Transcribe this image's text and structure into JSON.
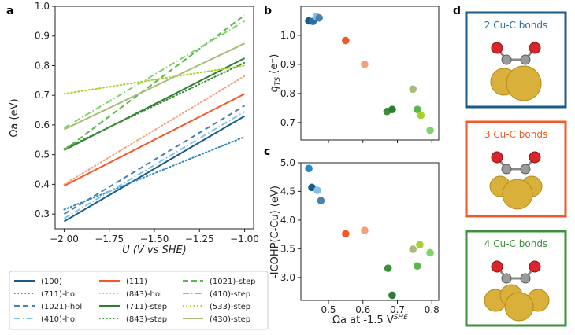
{
  "panel_labels": {
    "a": "a",
    "b": "b",
    "c": "c",
    "d": "d"
  },
  "colors": {
    "dark_blue": "#1c5a87",
    "mid_blue": "#4a7fb0",
    "light_blue": "#7fc3ea",
    "dotted_blue": "#2a88c4",
    "orange": "#f05a28",
    "light_orange": "#f4a07a",
    "dark_green": "#2e7d32",
    "mid_green": "#58b84a",
    "lime": "#8ccc3c",
    "olive": "#a9bb78",
    "bright_green": "#5cc85c"
  },
  "chart_data": [
    {
      "id": "a",
      "type": "line",
      "xlabel": "U (V vs SHE)",
      "ylabel": "Ωa (eV)",
      "xlim": [
        -2.05,
        -0.95
      ],
      "ylim": [
        0.25,
        1.0
      ],
      "xticks": [
        -2.0,
        -1.75,
        -1.5,
        -1.25,
        -1.0
      ],
      "xtick_labels": [
        "−2.00",
        "−1.75",
        "−1.50",
        "−1.25",
        "−1.00"
      ],
      "yticks": [
        0.3,
        0.4,
        0.5,
        0.6,
        0.7,
        0.8,
        0.9,
        1.0
      ],
      "ytick_labels": [
        "0.3",
        "0.4",
        "0.5",
        "0.6",
        "0.7",
        "0.8",
        "0.9",
        "1.0"
      ],
      "series": [
        {
          "name": "(100)",
          "color": "#1c5a87",
          "dash": "solid",
          "x": [
            -2.0,
            -1.0
          ],
          "y": [
            0.275,
            0.63
          ]
        },
        {
          "name": "(711)-hol",
          "color": "#2a88c4",
          "dash": "dotted",
          "x": [
            -2.0,
            -1.0
          ],
          "y": [
            0.315,
            0.56
          ]
        },
        {
          "name": "(1021)-hol",
          "color": "#4a7fb0",
          "dash": "dashed",
          "x": [
            -2.0,
            -1.0
          ],
          "y": [
            0.3,
            0.665
          ]
        },
        {
          "name": "(410)-hol",
          "color": "#7fc3ea",
          "dash": "dashdot",
          "x": [
            -2.0,
            -1.0
          ],
          "y": [
            0.285,
            0.645
          ]
        },
        {
          "name": "(111)",
          "color": "#f05a28",
          "dash": "solid",
          "x": [
            -2.0,
            -1.0
          ],
          "y": [
            0.395,
            0.705
          ]
        },
        {
          "name": "(843)-hol",
          "color": "#f4a07a",
          "dash": "dotted",
          "x": [
            -2.0,
            -1.0
          ],
          "y": [
            0.4,
            0.765
          ]
        },
        {
          "name": "(711)-step",
          "color": "#2e7d32",
          "dash": "solid",
          "x": [
            -2.0,
            -1.0
          ],
          "y": [
            0.515,
            0.825
          ]
        },
        {
          "name": "(843)-step",
          "color": "#3f8f3a",
          "dash": "dotted",
          "x": [
            -2.0,
            -1.0
          ],
          "y": [
            0.52,
            0.81
          ]
        },
        {
          "name": "(1021)-step",
          "color": "#58b84a",
          "dash": "dashed",
          "x": [
            -2.0,
            -1.0
          ],
          "y": [
            0.515,
            0.97
          ]
        },
        {
          "name": "(410)-step",
          "color": "#7ed36a",
          "dash": "dashdot",
          "x": [
            -2.0,
            -1.0
          ],
          "y": [
            0.59,
            0.95
          ]
        },
        {
          "name": "(533)-step",
          "color": "#a6d22e",
          "dash": "dotted",
          "x": [
            -2.0,
            -1.0
          ],
          "y": [
            0.705,
            0.8
          ]
        },
        {
          "name": "(430)-step",
          "color": "#a9bb78",
          "dash": "solid",
          "x": [
            -2.0,
            -1.0
          ],
          "y": [
            0.585,
            0.875
          ]
        }
      ]
    },
    {
      "id": "b",
      "type": "scatter",
      "xlabel": "",
      "ylabel": "qTS (e⁻)",
      "ylabel_main": "q",
      "ylabel_sub": "TS",
      "ylabel_rest": " (e⁻)",
      "xlim": [
        0.42,
        0.82
      ],
      "ylim": [
        0.64,
        1.1
      ],
      "xticks": [
        0.5,
        0.6,
        0.7,
        0.8
      ],
      "yticks": [
        0.7,
        0.8,
        0.9,
        1.0
      ],
      "ytick_labels": [
        "0.7",
        "0.8",
        "0.9",
        "1.0"
      ],
      "points": [
        {
          "x": 0.443,
          "y": 1.05,
          "color": "#1c5a87"
        },
        {
          "x": 0.455,
          "y": 1.048,
          "color": "#2a6fa8"
        },
        {
          "x": 0.465,
          "y": 1.065,
          "color": "#7fc3ea"
        },
        {
          "x": 0.473,
          "y": 1.06,
          "color": "#4a7fb0"
        },
        {
          "x": 0.55,
          "y": 0.982,
          "color": "#f05a28"
        },
        {
          "x": 0.605,
          "y": 0.9,
          "color": "#f4a07a"
        },
        {
          "x": 0.67,
          "y": 0.738,
          "color": "#3f8f3a"
        },
        {
          "x": 0.685,
          "y": 0.745,
          "color": "#2e7d32"
        },
        {
          "x": 0.745,
          "y": 0.815,
          "color": "#a9bb78"
        },
        {
          "x": 0.758,
          "y": 0.745,
          "color": "#58b84a"
        },
        {
          "x": 0.768,
          "y": 0.725,
          "color": "#a6d22e"
        },
        {
          "x": 0.795,
          "y": 0.673,
          "color": "#7ed36a"
        }
      ]
    },
    {
      "id": "c",
      "type": "scatter",
      "xlabel": "Ωa at -1.5 VSHE",
      "xlabel_main": "Ωa at -1.5 V",
      "xlabel_sup": "SHE",
      "ylabel": "-ICOHP(C-Cu) (eV)",
      "xlim": [
        0.42,
        0.82
      ],
      "ylim": [
        2.6,
        5.0
      ],
      "xticks": [
        0.5,
        0.6,
        0.7,
        0.8
      ],
      "xtick_labels": [
        "0.5",
        "0.6",
        "0.7",
        "0.8"
      ],
      "yticks": [
        3.0,
        3.5,
        4.0,
        4.5,
        5.0
      ],
      "ytick_labels": [
        "3.0",
        "3.5",
        "4.0",
        "4.5",
        "5.0"
      ],
      "points": [
        {
          "x": 0.443,
          "y": 4.9,
          "color": "#2a88c4"
        },
        {
          "x": 0.452,
          "y": 4.57,
          "color": "#1c5a87"
        },
        {
          "x": 0.468,
          "y": 4.52,
          "color": "#7fc3ea"
        },
        {
          "x": 0.478,
          "y": 4.34,
          "color": "#4a7fb0"
        },
        {
          "x": 0.55,
          "y": 3.76,
          "color": "#f05a28"
        },
        {
          "x": 0.605,
          "y": 3.82,
          "color": "#f4a07a"
        },
        {
          "x": 0.673,
          "y": 3.16,
          "color": "#3f8f3a"
        },
        {
          "x": 0.685,
          "y": 2.69,
          "color": "#2e7d32"
        },
        {
          "x": 0.745,
          "y": 3.49,
          "color": "#a9bb78"
        },
        {
          "x": 0.758,
          "y": 3.2,
          "color": "#58b84a"
        },
        {
          "x": 0.765,
          "y": 3.57,
          "color": "#a6d22e"
        },
        {
          "x": 0.795,
          "y": 3.43,
          "color": "#7ed36a"
        }
      ]
    }
  ],
  "legend": [
    {
      "label": "(100)",
      "color": "#1c5a87",
      "dash": "solid"
    },
    {
      "label": "(111)",
      "color": "#f05a28",
      "dash": "solid"
    },
    {
      "label": "(1021)-step",
      "color": "#58b84a",
      "dash": "dashed"
    },
    {
      "label": "(711)-hol",
      "color": "#2a88c4",
      "dash": "dotted"
    },
    {
      "label": "(843)-hol",
      "color": "#f4a07a",
      "dash": "dotted"
    },
    {
      "label": "(410)-step",
      "color": "#7ed36a",
      "dash": "dashdot"
    },
    {
      "label": "(1021)-hol",
      "color": "#4a7fb0",
      "dash": "dashed"
    },
    {
      "label": "(711)-step",
      "color": "#2e7d32",
      "dash": "solid"
    },
    {
      "label": "(533)-step",
      "color": "#a6d22e",
      "dash": "dotted"
    },
    {
      "label": "(410)-hol",
      "color": "#7fc3ea",
      "dash": "dashdot"
    },
    {
      "label": "(843)-step",
      "color": "#3f8f3a",
      "dash": "dotted"
    },
    {
      "label": "(430)-step",
      "color": "#a9bb78",
      "dash": "solid"
    }
  ],
  "structures": [
    {
      "title": "2 Cu-C bonds",
      "border": "#1c5a87",
      "title_color": "#2a6fa8",
      "bonds": 2
    },
    {
      "title": "3 Cu-C bonds",
      "border": "#f05a28",
      "title_color": "#f05a28",
      "bonds": 3
    },
    {
      "title": "4 Cu-C bonds",
      "border": "#3f8f3a",
      "title_color": "#3f8f3a",
      "bonds": 4
    }
  ]
}
